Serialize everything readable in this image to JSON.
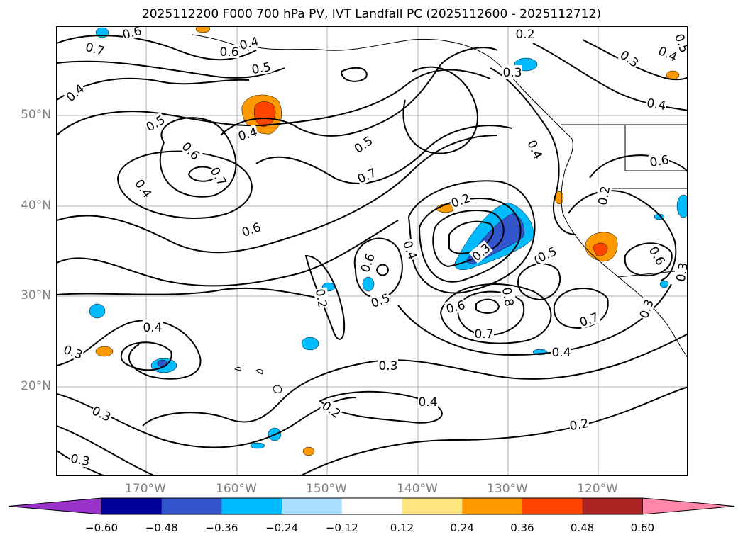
{
  "title": "2025112200 F000 700 hPa PV, IVT Landfall PC (2025112600 - 2025112712)",
  "axes": {
    "lat_labels": [
      "50°N",
      "40°N",
      "30°N",
      "20°N"
    ],
    "lon_labels": [
      "170°W",
      "160°W",
      "150°W",
      "140°W",
      "130°W",
      "120°W"
    ]
  },
  "colorbar": {
    "ticks": [
      "−0.60",
      "−0.48",
      "−0.36",
      "−0.24",
      "−0.12",
      "0.12",
      "0.24",
      "0.36",
      "0.48",
      "0.60"
    ],
    "colors": [
      "#9933cc",
      "#000099",
      "#3355cc",
      "#00bbff",
      "#aae0ff",
      "#ffffff",
      "#ffe680",
      "#ff9900",
      "#ff4400",
      "#aa2222",
      "#ff88aa"
    ]
  },
  "contour_labels": [
    {
      "text": "0.6"
    },
    {
      "text": "0.7"
    },
    {
      "text": "0.6"
    },
    {
      "text": "0.4"
    },
    {
      "text": "0.5"
    },
    {
      "text": "0.5"
    },
    {
      "text": "0.4"
    },
    {
      "text": "0.6"
    },
    {
      "text": "0.7"
    },
    {
      "text": "0.4"
    },
    {
      "text": "0.4"
    },
    {
      "text": "0.5"
    },
    {
      "text": "0.7"
    },
    {
      "text": "0.6"
    },
    {
      "text": "0.2"
    },
    {
      "text": "0.4"
    },
    {
      "text": "0.6"
    },
    {
      "text": "0.5"
    },
    {
      "text": "0.3"
    },
    {
      "text": "0.2"
    },
    {
      "text": "0.6"
    },
    {
      "text": "0.8"
    },
    {
      "text": "0.7"
    },
    {
      "text": "0.5"
    },
    {
      "text": "0.7"
    },
    {
      "text": "0.4"
    },
    {
      "text": "0.2"
    },
    {
      "text": "0.3"
    },
    {
      "text": "0.4"
    },
    {
      "text": "0.4"
    },
    {
      "text": "0.3"
    },
    {
      "text": "0.3"
    },
    {
      "text": "0.2"
    },
    {
      "text": "0.3"
    },
    {
      "text": "0.4"
    },
    {
      "text": "0.2"
    },
    {
      "text": "0.3"
    },
    {
      "text": "0.6"
    },
    {
      "text": "0.3"
    },
    {
      "text": "0.5"
    },
    {
      "text": "0.6"
    },
    {
      "text": "0.4"
    },
    {
      "text": "0.3"
    },
    {
      "text": "0.4"
    },
    {
      "text": "0.5"
    },
    {
      "text": "0.2"
    },
    {
      "text": "0.3"
    }
  ]
}
